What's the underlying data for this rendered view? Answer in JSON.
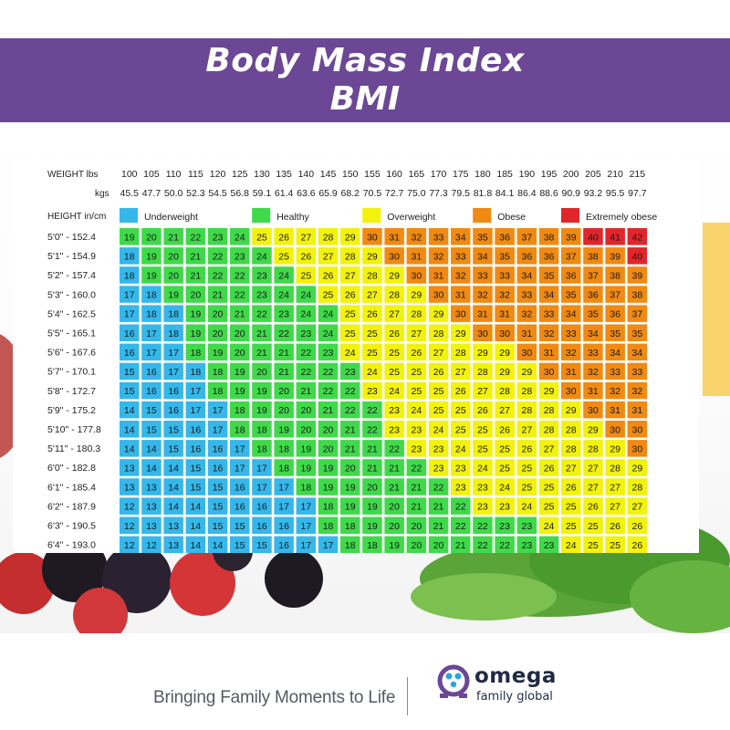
{
  "header": {
    "title_line1": "Body Mass Index",
    "title_line2": "BMI"
  },
  "footer": {
    "tagline": "Bringing Family Moments to Life",
    "brand_name": "omega",
    "brand_sub": "family global"
  },
  "colors": {
    "banner": "#6b4795",
    "underweight": "#35b7ea",
    "healthy": "#3fd94a",
    "overweight": "#f2f20c",
    "obese": "#f08a13",
    "extremely_obese": "#e1262b"
  },
  "chart_data": {
    "type": "heatmap",
    "row_header_weight_lbs": "WEIGHT lbs",
    "row_header_weight_kgs": "kgs",
    "row_header_height": "HEIGHT in/cm",
    "weights_lbs": [
      "100",
      "105",
      "110",
      "115",
      "120",
      "125",
      "130",
      "135",
      "140",
      "145",
      "150",
      "155",
      "160",
      "165",
      "170",
      "175",
      "180",
      "185",
      "190",
      "195",
      "200",
      "205",
      "210",
      "215"
    ],
    "weights_kgs": [
      "45.5",
      "47.7",
      "50.0",
      "52.3",
      "54.5",
      "56.8",
      "59.1",
      "61.4",
      "63.6",
      "65.9",
      "68.2",
      "70.5",
      "72.7",
      "75.0",
      "77.3",
      "79.5",
      "81.8",
      "84.1",
      "86.4",
      "88.6",
      "90.9",
      "93.2",
      "95.5",
      "97.7"
    ],
    "heights": [
      "5'0\" - 152.4",
      "5'1\" - 154.9",
      "5'2\" - 157.4",
      "5'3\" - 160.0",
      "5'4\" - 162.5",
      "5'5\" - 165.1",
      "5'6\" - 167.6",
      "5'7\" - 170.1",
      "5'8\" - 172.7",
      "5'9\" - 175.2",
      "5'10\" - 177.8",
      "5'11\" - 180.3",
      "6'0\" - 182.8",
      "6'1\" - 185.4",
      "6'2\" - 187.9",
      "6'3\" - 190.5",
      "6'4\" - 193.0"
    ],
    "legend": [
      {
        "label": "Underweight",
        "category": "underweight"
      },
      {
        "label": "Healthy",
        "category": "healthy"
      },
      {
        "label": "Overweight",
        "category": "overweight"
      },
      {
        "label": "Obese",
        "category": "obese"
      },
      {
        "label": "Extremely obese",
        "category": "extremely_obese"
      }
    ],
    "bmi_values": [
      [
        19,
        20,
        21,
        22,
        23,
        24,
        25,
        26,
        27,
        28,
        29,
        30,
        31,
        32,
        33,
        34,
        35,
        36,
        37,
        38,
        39,
        40,
        41,
        42
      ],
      [
        18,
        19,
        20,
        21,
        22,
        23,
        24,
        25,
        26,
        27,
        28,
        29,
        30,
        31,
        32,
        33,
        34,
        35,
        36,
        36,
        37,
        38,
        39,
        40
      ],
      [
        18,
        19,
        20,
        21,
        22,
        22,
        23,
        24,
        25,
        26,
        27,
        28,
        29,
        30,
        31,
        32,
        33,
        33,
        34,
        35,
        36,
        37,
        38,
        39
      ],
      [
        17,
        18,
        19,
        20,
        21,
        22,
        23,
        24,
        24,
        25,
        26,
        27,
        28,
        29,
        30,
        31,
        32,
        32,
        33,
        34,
        35,
        36,
        37,
        38
      ],
      [
        17,
        18,
        18,
        19,
        20,
        21,
        22,
        23,
        24,
        24,
        25,
        26,
        27,
        28,
        29,
        30,
        31,
        31,
        32,
        33,
        34,
        35,
        36,
        37
      ],
      [
        16,
        17,
        18,
        19,
        20,
        20,
        21,
        22,
        23,
        24,
        25,
        25,
        26,
        27,
        28,
        29,
        30,
        30,
        31,
        32,
        33,
        34,
        35,
        35
      ],
      [
        16,
        17,
        17,
        18,
        19,
        20,
        21,
        21,
        22,
        23,
        24,
        25,
        25,
        26,
        27,
        28,
        29,
        29,
        30,
        31,
        32,
        33,
        34,
        34
      ],
      [
        15,
        16,
        17,
        18,
        18,
        19,
        20,
        21,
        22,
        22,
        23,
        24,
        25,
        25,
        26,
        27,
        28,
        29,
        29,
        30,
        31,
        32,
        33,
        33
      ],
      [
        15,
        16,
        16,
        17,
        18,
        19,
        19,
        20,
        21,
        22,
        22,
        23,
        24,
        25,
        25,
        26,
        27,
        28,
        28,
        29,
        30,
        31,
        32,
        32
      ],
      [
        14,
        15,
        16,
        17,
        17,
        18,
        19,
        20,
        20,
        21,
        22,
        22,
        23,
        24,
        25,
        25,
        26,
        27,
        28,
        28,
        29,
        30,
        31,
        31
      ],
      [
        14,
        15,
        15,
        16,
        17,
        18,
        18,
        19,
        20,
        20,
        21,
        22,
        23,
        23,
        24,
        25,
        25,
        26,
        27,
        28,
        28,
        29,
        30,
        30
      ],
      [
        14,
        14,
        15,
        16,
        16,
        17,
        18,
        18,
        19,
        20,
        21,
        21,
        22,
        23,
        23,
        24,
        25,
        25,
        26,
        27,
        28,
        28,
        29,
        30
      ],
      [
        13,
        14,
        14,
        15,
        16,
        17,
        17,
        18,
        19,
        19,
        20,
        21,
        21,
        22,
        23,
        23,
        24,
        25,
        25,
        26,
        27,
        27,
        28,
        29
      ],
      [
        13,
        13,
        14,
        15,
        15,
        16,
        17,
        17,
        18,
        19,
        19,
        20,
        21,
        21,
        22,
        23,
        23,
        24,
        25,
        25,
        26,
        27,
        27,
        28
      ],
      [
        12,
        13,
        14,
        14,
        15,
        16,
        16,
        17,
        17,
        18,
        19,
        19,
        20,
        21,
        21,
        22,
        23,
        23,
        24,
        25,
        25,
        26,
        27,
        27
      ],
      [
        12,
        13,
        13,
        14,
        15,
        15,
        16,
        16,
        17,
        18,
        18,
        19,
        20,
        20,
        21,
        22,
        22,
        23,
        23,
        24,
        25,
        25,
        26,
        26
      ],
      [
        12,
        12,
        13,
        14,
        14,
        15,
        15,
        16,
        17,
        17,
        18,
        18,
        19,
        20,
        20,
        21,
        22,
        22,
        23,
        23,
        24,
        25,
        25,
        26
      ]
    ],
    "bmi_categories": [
      [
        "healthy",
        "healthy",
        "healthy",
        "healthy",
        "healthy",
        "healthy",
        "overweight",
        "overweight",
        "overweight",
        "overweight",
        "overweight",
        "obese",
        "obese",
        "obese",
        "obese",
        "obese",
        "obese",
        "obese",
        "obese",
        "obese",
        "obese",
        "extremely_obese",
        "extremely_obese",
        "extremely_obese"
      ],
      [
        "underweight",
        "healthy",
        "healthy",
        "healthy",
        "healthy",
        "healthy",
        "healthy",
        "overweight",
        "overweight",
        "overweight",
        "overweight",
        "overweight",
        "obese",
        "obese",
        "obese",
        "obese",
        "obese",
        "obese",
        "obese",
        "obese",
        "obese",
        "obese",
        "obese",
        "extremely_obese"
      ],
      [
        "underweight",
        "healthy",
        "healthy",
        "healthy",
        "healthy",
        "healthy",
        "healthy",
        "healthy",
        "overweight",
        "overweight",
        "overweight",
        "overweight",
        "overweight",
        "obese",
        "obese",
        "obese",
        "obese",
        "obese",
        "obese",
        "obese",
        "obese",
        "obese",
        "obese",
        "obese"
      ],
      [
        "underweight",
        "underweight",
        "healthy",
        "healthy",
        "healthy",
        "healthy",
        "healthy",
        "healthy",
        "healthy",
        "overweight",
        "overweight",
        "overweight",
        "overweight",
        "overweight",
        "obese",
        "obese",
        "obese",
        "obese",
        "obese",
        "obese",
        "obese",
        "obese",
        "obese",
        "obese"
      ],
      [
        "underweight",
        "underweight",
        "underweight",
        "healthy",
        "healthy",
        "healthy",
        "healthy",
        "healthy",
        "healthy",
        "healthy",
        "overweight",
        "overweight",
        "overweight",
        "overweight",
        "overweight",
        "obese",
        "obese",
        "obese",
        "obese",
        "obese",
        "obese",
        "obese",
        "obese",
        "obese"
      ],
      [
        "underweight",
        "underweight",
        "underweight",
        "healthy",
        "healthy",
        "healthy",
        "healthy",
        "healthy",
        "healthy",
        "healthy",
        "overweight",
        "overweight",
        "overweight",
        "overweight",
        "overweight",
        "overweight",
        "obese",
        "obese",
        "obese",
        "obese",
        "obese",
        "obese",
        "obese",
        "obese"
      ],
      [
        "underweight",
        "underweight",
        "underweight",
        "healthy",
        "healthy",
        "healthy",
        "healthy",
        "healthy",
        "healthy",
        "healthy",
        "overweight",
        "overweight",
        "overweight",
        "overweight",
        "overweight",
        "overweight",
        "overweight",
        "overweight",
        "obese",
        "obese",
        "obese",
        "obese",
        "obese",
        "obese"
      ],
      [
        "underweight",
        "underweight",
        "underweight",
        "underweight",
        "healthy",
        "healthy",
        "healthy",
        "healthy",
        "healthy",
        "healthy",
        "healthy",
        "overweight",
        "overweight",
        "overweight",
        "overweight",
        "overweight",
        "overweight",
        "overweight",
        "overweight",
        "obese",
        "obese",
        "obese",
        "obese",
        "obese"
      ],
      [
        "underweight",
        "underweight",
        "underweight",
        "underweight",
        "healthy",
        "healthy",
        "healthy",
        "healthy",
        "healthy",
        "healthy",
        "healthy",
        "overweight",
        "overweight",
        "overweight",
        "overweight",
        "overweight",
        "overweight",
        "overweight",
        "overweight",
        "overweight",
        "obese",
        "obese",
        "obese",
        "obese"
      ],
      [
        "underweight",
        "underweight",
        "underweight",
        "underweight",
        "underweight",
        "healthy",
        "healthy",
        "healthy",
        "healthy",
        "healthy",
        "healthy",
        "healthy",
        "overweight",
        "overweight",
        "overweight",
        "overweight",
        "overweight",
        "overweight",
        "overweight",
        "overweight",
        "overweight",
        "obese",
        "obese",
        "obese"
      ],
      [
        "underweight",
        "underweight",
        "underweight",
        "underweight",
        "underweight",
        "healthy",
        "healthy",
        "healthy",
        "healthy",
        "healthy",
        "healthy",
        "healthy",
        "overweight",
        "overweight",
        "overweight",
        "overweight",
        "overweight",
        "overweight",
        "overweight",
        "overweight",
        "overweight",
        "overweight",
        "obese",
        "obese"
      ],
      [
        "underweight",
        "underweight",
        "underweight",
        "underweight",
        "underweight",
        "underweight",
        "healthy",
        "healthy",
        "healthy",
        "healthy",
        "healthy",
        "healthy",
        "healthy",
        "overweight",
        "overweight",
        "overweight",
        "overweight",
        "overweight",
        "overweight",
        "overweight",
        "overweight",
        "overweight",
        "overweight",
        "obese"
      ],
      [
        "underweight",
        "underweight",
        "underweight",
        "underweight",
        "underweight",
        "underweight",
        "underweight",
        "healthy",
        "healthy",
        "healthy",
        "healthy",
        "healthy",
        "healthy",
        "healthy",
        "overweight",
        "overweight",
        "overweight",
        "overweight",
        "overweight",
        "overweight",
        "overweight",
        "overweight",
        "overweight",
        "overweight"
      ],
      [
        "underweight",
        "underweight",
        "underweight",
        "underweight",
        "underweight",
        "underweight",
        "underweight",
        "underweight",
        "healthy",
        "healthy",
        "healthy",
        "healthy",
        "healthy",
        "healthy",
        "healthy",
        "overweight",
        "overweight",
        "overweight",
        "overweight",
        "overweight",
        "overweight",
        "overweight",
        "overweight",
        "overweight"
      ],
      [
        "underweight",
        "underweight",
        "underweight",
        "underweight",
        "underweight",
        "underweight",
        "underweight",
        "underweight",
        "underweight",
        "healthy",
        "healthy",
        "healthy",
        "healthy",
        "healthy",
        "healthy",
        "healthy",
        "overweight",
        "overweight",
        "overweight",
        "overweight",
        "overweight",
        "overweight",
        "overweight",
        "overweight"
      ],
      [
        "underweight",
        "underweight",
        "underweight",
        "underweight",
        "underweight",
        "underweight",
        "underweight",
        "underweight",
        "underweight",
        "healthy",
        "healthy",
        "healthy",
        "healthy",
        "healthy",
        "healthy",
        "healthy",
        "healthy",
        "healthy",
        "healthy",
        "overweight",
        "overweight",
        "overweight",
        "overweight",
        "overweight"
      ],
      [
        "underweight",
        "underweight",
        "underweight",
        "underweight",
        "underweight",
        "underweight",
        "underweight",
        "underweight",
        "underweight",
        "underweight",
        "healthy",
        "healthy",
        "healthy",
        "healthy",
        "healthy",
        "healthy",
        "healthy",
        "healthy",
        "healthy",
        "healthy",
        "overweight",
        "overweight",
        "overweight",
        "overweight"
      ]
    ]
  }
}
